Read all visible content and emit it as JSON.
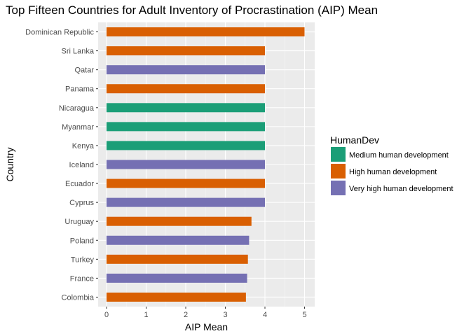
{
  "chart_data": {
    "type": "bar",
    "orientation": "horizontal",
    "title": "Top Fifteen Countries for Adult Inventory of Procrastination (AIP) Mean",
    "xlabel": "AIP Mean",
    "ylabel": "Country",
    "xlim": [
      0,
      5.25
    ],
    "xticks": [
      "0",
      "1",
      "2",
      "3",
      "4",
      "5"
    ],
    "grid": true,
    "legend_position": "right",
    "legend": {
      "title": "HumanDev",
      "entries": [
        {
          "label": "Medium human development",
          "color": "#1b9e77"
        },
        {
          "label": "High human development",
          "color": "#d95f02"
        },
        {
          "label": "Very high human development",
          "color": "#7570b3"
        }
      ]
    },
    "categories": [
      "Dominican Republic",
      "Sri Lanka",
      "Qatar",
      "Panama",
      "Nicaragua",
      "Myanmar",
      "Kenya",
      "Iceland",
      "Ecuador",
      "Cyprus",
      "Uruguay",
      "Poland",
      "Turkey",
      "France",
      "Colombia"
    ],
    "values": [
      5.0,
      4.0,
      4.0,
      4.0,
      4.0,
      4.0,
      4.0,
      4.0,
      4.0,
      4.0,
      3.66,
      3.6,
      3.57,
      3.55,
      3.52
    ],
    "groups": [
      "High human development",
      "High human development",
      "Very high human development",
      "High human development",
      "Medium human development",
      "Medium human development",
      "Medium human development",
      "Very high human development",
      "High human development",
      "Very high human development",
      "High human development",
      "Very high human development",
      "High human development",
      "Very high human development",
      "High human development"
    ]
  }
}
